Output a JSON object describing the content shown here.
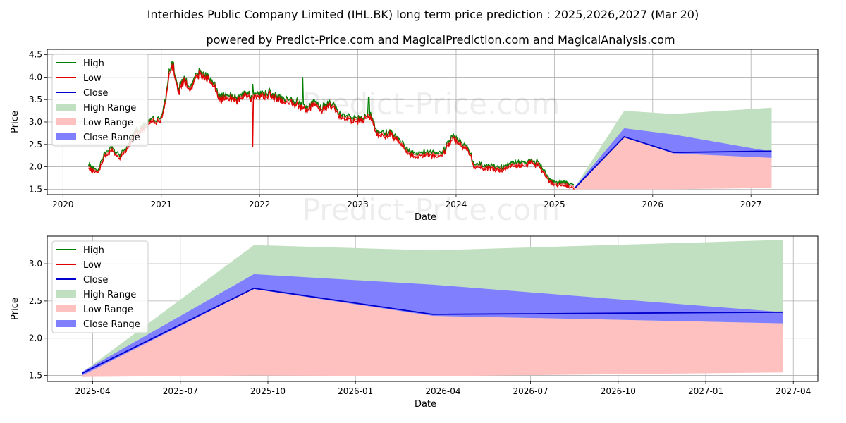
{
  "title": "Interhides Public Company Limited (IHL.BK) long term price prediction : 2025,2026,2027 (Mar 20)",
  "subtitle": "powered by Predict-Price.com and MagicalPrediction.com and MagicalAnalysis.com",
  "watermark": "Predict-Price.com",
  "colors": {
    "high": "#008000",
    "low": "#e00000",
    "close": "#0000cc",
    "high_range": "#c1e0c1",
    "low_range": "#ffc0c0",
    "close_range": "#8080ff",
    "grid": "#b0b0b0"
  },
  "legend": [
    {
      "key": "high",
      "label": "High",
      "kind": "line"
    },
    {
      "key": "low",
      "label": "Low",
      "kind": "line"
    },
    {
      "key": "close",
      "label": "Close",
      "kind": "line"
    },
    {
      "key": "high_range",
      "label": "High Range",
      "kind": "patch"
    },
    {
      "key": "low_range",
      "label": "Low Range",
      "kind": "patch"
    },
    {
      "key": "close_range",
      "label": "Close Range",
      "kind": "patch"
    }
  ],
  "chart_data": [
    {
      "type": "line",
      "name": "history-and-forecast",
      "xlabel": "Date",
      "ylabel": "Price",
      "xlim": [
        2019.84,
        2027.68
      ],
      "ylim": [
        1.38,
        4.62
      ],
      "xticks": [
        {
          "x": 2020,
          "label": "2020"
        },
        {
          "x": 2021,
          "label": "2021"
        },
        {
          "x": 2022,
          "label": "2022"
        },
        {
          "x": 2023,
          "label": "2023"
        },
        {
          "x": 2024,
          "label": "2024"
        },
        {
          "x": 2025,
          "label": "2025"
        },
        {
          "x": 2026,
          "label": "2026"
        },
        {
          "x": 2027,
          "label": "2027"
        }
      ],
      "yticks": [
        {
          "y": 1.5,
          "label": "1.5"
        },
        {
          "y": 2.0,
          "label": "2.0"
        },
        {
          "y": 2.5,
          "label": "2.5"
        },
        {
          "y": 3.0,
          "label": "3.0"
        },
        {
          "y": 3.5,
          "label": "3.5"
        },
        {
          "y": 4.0,
          "label": "4.0"
        },
        {
          "y": 4.5,
          "label": "4.5"
        }
      ],
      "history_anchors": [
        [
          2020.26,
          2.0
        ],
        [
          2020.3,
          1.95
        ],
        [
          2020.36,
          1.9
        ],
        [
          2020.42,
          2.25
        ],
        [
          2020.5,
          2.4
        ],
        [
          2020.58,
          2.2
        ],
        [
          2020.66,
          2.45
        ],
        [
          2020.74,
          2.8
        ],
        [
          2020.82,
          2.85
        ],
        [
          2020.9,
          3.05
        ],
        [
          2020.98,
          3.0
        ],
        [
          2021.04,
          3.4
        ],
        [
          2021.08,
          4.1
        ],
        [
          2021.12,
          4.3
        ],
        [
          2021.17,
          3.7
        ],
        [
          2021.24,
          3.95
        ],
        [
          2021.3,
          3.75
        ],
        [
          2021.38,
          4.1
        ],
        [
          2021.45,
          4.0
        ],
        [
          2021.52,
          3.9
        ],
        [
          2021.6,
          3.5
        ],
        [
          2021.68,
          3.6
        ],
        [
          2021.76,
          3.5
        ],
        [
          2021.84,
          3.6
        ],
        [
          2021.92,
          3.55
        ],
        [
          2022.0,
          3.6
        ],
        [
          2022.1,
          3.65
        ],
        [
          2022.2,
          3.5
        ],
        [
          2022.32,
          3.45
        ],
        [
          2022.4,
          3.4
        ],
        [
          2022.48,
          3.3
        ],
        [
          2022.56,
          3.4
        ],
        [
          2022.64,
          3.3
        ],
        [
          2022.72,
          3.4
        ],
        [
          2022.8,
          3.2
        ],
        [
          2022.9,
          3.1
        ],
        [
          2023.0,
          3.05
        ],
        [
          2023.08,
          3.1
        ],
        [
          2023.14,
          3.15
        ],
        [
          2023.18,
          2.8
        ],
        [
          2023.26,
          2.72
        ],
        [
          2023.34,
          2.75
        ],
        [
          2023.42,
          2.6
        ],
        [
          2023.5,
          2.35
        ],
        [
          2023.6,
          2.25
        ],
        [
          2023.7,
          2.3
        ],
        [
          2023.8,
          2.25
        ],
        [
          2023.88,
          2.35
        ],
        [
          2023.96,
          2.65
        ],
        [
          2024.04,
          2.55
        ],
        [
          2024.12,
          2.4
        ],
        [
          2024.18,
          2.05
        ],
        [
          2024.26,
          2.0
        ],
        [
          2024.36,
          1.98
        ],
        [
          2024.46,
          1.95
        ],
        [
          2024.56,
          2.05
        ],
        [
          2024.66,
          2.05
        ],
        [
          2024.76,
          2.1
        ],
        [
          2024.84,
          2.05
        ],
        [
          2024.9,
          1.85
        ],
        [
          2024.96,
          1.65
        ],
        [
          2025.06,
          1.62
        ],
        [
          2025.14,
          1.6
        ],
        [
          2025.2,
          1.55
        ]
      ],
      "history_spikes": [
        {
          "x": 2021.93,
          "high": 3.85,
          "low": 2.45
        },
        {
          "x": 2022.44,
          "high": 4.0,
          "low": 3.5
        },
        {
          "x": 2023.11,
          "high": 3.55,
          "low": 3.1
        }
      ],
      "forecast": {
        "x": [
          2025.21,
          2025.71,
          2026.21,
          2027.21
        ],
        "high_top": [
          1.55,
          3.25,
          3.18,
          3.32
        ],
        "low_bottom": [
          1.5,
          1.5,
          1.5,
          1.53
        ],
        "close_top": [
          1.55,
          2.86,
          2.72,
          2.34
        ],
        "close_bottom": [
          1.52,
          2.66,
          2.3,
          2.2
        ],
        "close": [
          1.53,
          2.67,
          2.32,
          2.35
        ]
      }
    },
    {
      "type": "line",
      "name": "forecast-zoom",
      "xlabel": "Date",
      "ylabel": "Price",
      "xlim": [
        2025.12,
        2027.32
      ],
      "ylim": [
        1.42,
        3.37
      ],
      "xticks": [
        {
          "x": 2025.25,
          "label": "2025-04"
        },
        {
          "x": 2025.5,
          "label": "2025-07"
        },
        {
          "x": 2025.75,
          "label": "2025-10"
        },
        {
          "x": 2026.0,
          "label": "2026-01"
        },
        {
          "x": 2026.25,
          "label": "2026-04"
        },
        {
          "x": 2026.5,
          "label": "2026-07"
        },
        {
          "x": 2026.75,
          "label": "2026-10"
        },
        {
          "x": 2027.0,
          "label": "2027-01"
        },
        {
          "x": 2027.25,
          "label": "2027-04"
        }
      ],
      "yticks": [
        {
          "y": 1.5,
          "label": "1.5"
        },
        {
          "y": 2.0,
          "label": "2.0"
        },
        {
          "y": 2.5,
          "label": "2.5"
        },
        {
          "y": 3.0,
          "label": "3.0"
        }
      ],
      "forecast": {
        "x": [
          2025.22,
          2025.71,
          2026.22,
          2027.22
        ],
        "high_top": [
          1.54,
          3.25,
          3.18,
          3.32
        ],
        "low_bottom": [
          1.48,
          1.5,
          1.49,
          1.54
        ],
        "close_top": [
          1.55,
          2.86,
          2.72,
          2.35
        ],
        "close_bottom": [
          1.5,
          2.66,
          2.3,
          2.2
        ],
        "close": [
          1.53,
          2.67,
          2.32,
          2.35
        ]
      }
    }
  ]
}
